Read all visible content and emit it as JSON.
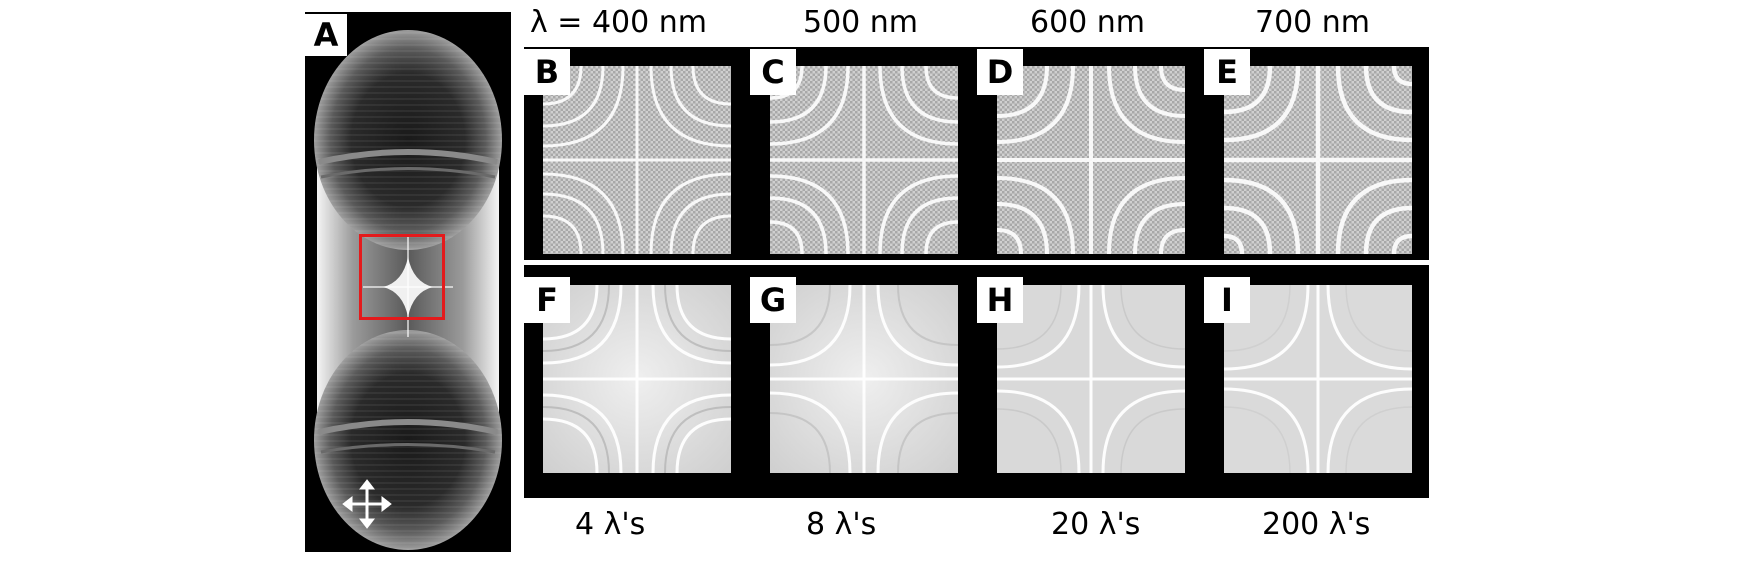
{
  "figure": {
    "panel_labels": {
      "A": "A",
      "B": "B",
      "C": "C",
      "D": "D",
      "E": "E",
      "F": "F",
      "G": "G",
      "H": "H",
      "I": "I"
    },
    "wavelength_headers": [
      "λ = 400 nm",
      "500 nm",
      "600 nm",
      "700 nm"
    ],
    "superposition_labels": [
      "4 λ's",
      "8 λ's",
      "20 λ's",
      "200 λ's"
    ],
    "accent_color": "#e41a1c",
    "icons": [
      "move-arrows-icon"
    ]
  }
}
